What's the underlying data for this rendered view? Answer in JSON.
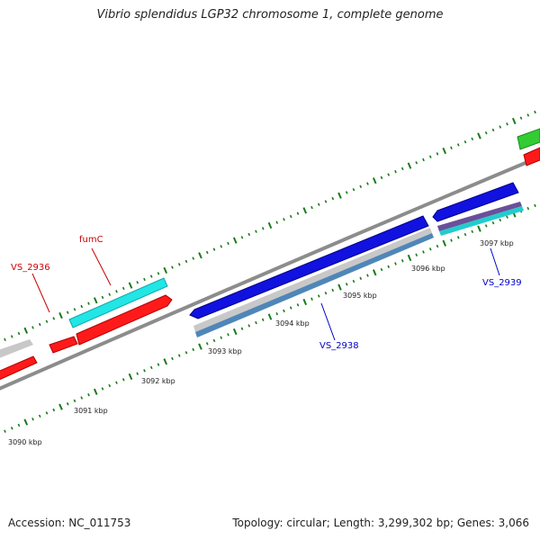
{
  "title": "Vibrio splendidus LGP32 chromosome 1, complete genome",
  "accession_text": "Accession: NC_011753",
  "stats_text": "Topology: circular; Length: 3,299,302 bp; Genes: 3,066",
  "colors": {
    "backbone": "#8c8c8c",
    "tick": "#1a7a1a",
    "red": "#ff1a1a",
    "cyan": "#22e5e5",
    "blue": "#1111e0",
    "gray": "#c8c8c8",
    "green": "#33cc33"
  },
  "scale_labels": [
    "3090 kbp",
    "3091 kbp",
    "3092 kbp",
    "3093 kbp",
    "3094 kbp",
    "3095 kbp",
    "3096 kbp",
    "3097 kbp"
  ],
  "gene_labels": [
    {
      "text": "fumC",
      "color": "#cc0000"
    },
    {
      "text": "VS_2936",
      "color": "#cc0000"
    },
    {
      "text": "VS_2938",
      "color": "#0000cc"
    },
    {
      "text": "VS_2939",
      "color": "#0000cc"
    }
  ]
}
